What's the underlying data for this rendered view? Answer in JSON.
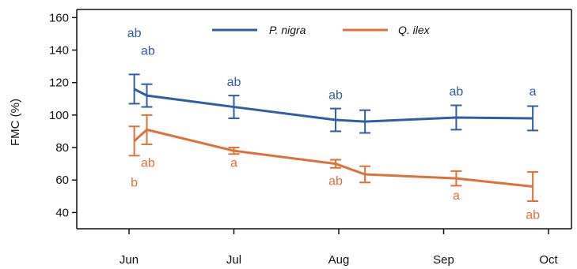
{
  "chart_data": {
    "type": "line",
    "ylabel": "FMC (%)",
    "ylim": [
      30,
      165
    ],
    "xlim": [
      0.5,
      4.7
    ],
    "y_ticks": [
      40,
      60,
      80,
      100,
      120,
      140,
      160
    ],
    "x_ticks": [
      {
        "label": "Jun",
        "x": 0
      },
      {
        "label": "Jul",
        "x": 1
      },
      {
        "label": "Aug",
        "x": 2
      },
      {
        "label": "Sep",
        "x": 3
      },
      {
        "label": "Oct",
        "x": 4
      }
    ],
    "grid": false,
    "legend": "top",
    "series": [
      {
        "name": "P. nigra",
        "color": "#2f5da8",
        "points": [
          {
            "x": 0.05,
            "y": 116,
            "err": 9
          },
          {
            "x": 0.17,
            "y": 112,
            "err": 7
          },
          {
            "x": 1.0,
            "y": 105,
            "err": 7
          },
          {
            "x": 1.97,
            "y": 97,
            "err": 7
          },
          {
            "x": 2.25,
            "y": 96,
            "err": 7
          },
          {
            "x": 3.12,
            "y": 98.5,
            "err": 7.5
          },
          {
            "x": 3.85,
            "y": 98,
            "err": 7.5
          }
        ],
        "labels": [
          {
            "x": 0.05,
            "y": 148,
            "text": "ab"
          },
          {
            "x": 0.18,
            "y": 137,
            "text": "ab"
          },
          {
            "x": 1.0,
            "y": 118,
            "text": "ab"
          },
          {
            "x": 1.97,
            "y": 110,
            "text": "ab"
          },
          {
            "x": 3.12,
            "y": 112,
            "text": "ab"
          },
          {
            "x": 3.85,
            "y": 112,
            "text": "a"
          }
        ]
      },
      {
        "name": "Q. ilex",
        "color": "#e0703a",
        "points": [
          {
            "x": 0.05,
            "y": 84,
            "err": 9
          },
          {
            "x": 0.17,
            "y": 91,
            "err": 9
          },
          {
            "x": 1.0,
            "y": 78,
            "err": 2
          },
          {
            "x": 1.97,
            "y": 70,
            "err": 2.5
          },
          {
            "x": 2.25,
            "y": 63.5,
            "err": 5
          },
          {
            "x": 3.12,
            "y": 61,
            "err": 4.5
          },
          {
            "x": 3.85,
            "y": 56,
            "err": 9
          }
        ],
        "labels": [
          {
            "x": 0.18,
            "y": 68,
            "text": "ab"
          },
          {
            "x": 0.05,
            "y": 56,
            "text": "b"
          },
          {
            "x": 1.0,
            "y": 68,
            "text": "a"
          },
          {
            "x": 1.97,
            "y": 57,
            "text": "ab"
          },
          {
            "x": 3.12,
            "y": 48,
            "text": "a"
          },
          {
            "x": 3.85,
            "y": 36,
            "text": "ab"
          }
        ]
      }
    ]
  }
}
